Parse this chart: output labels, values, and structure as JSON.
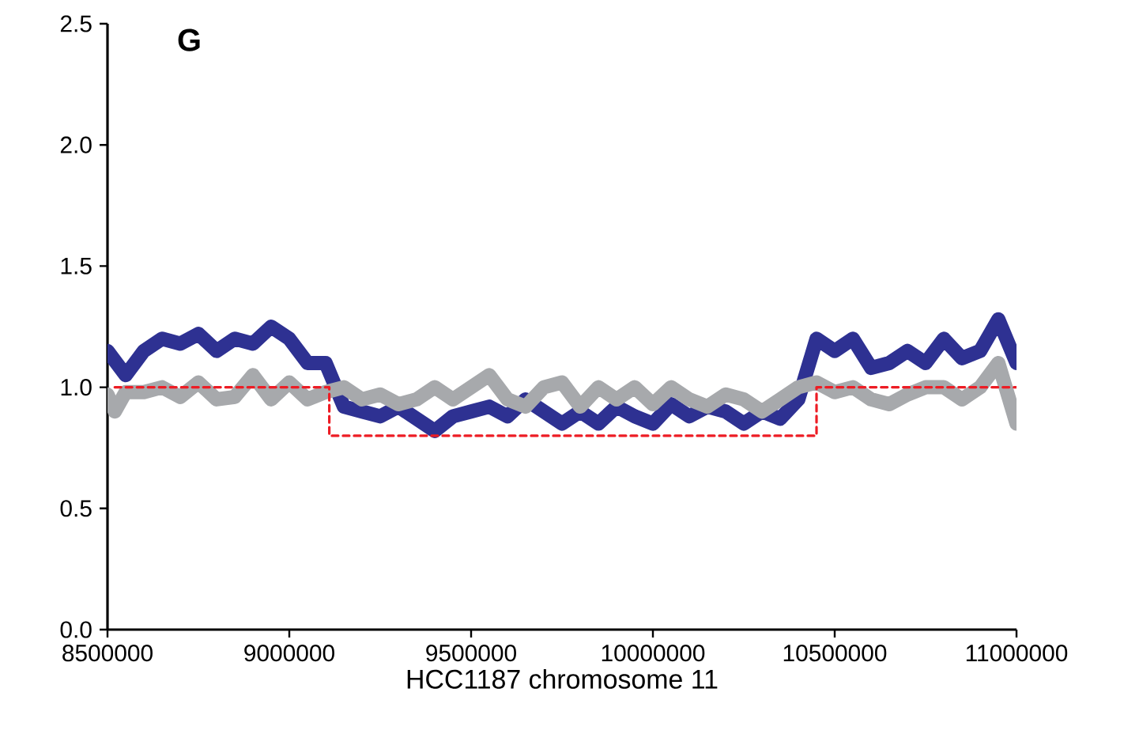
{
  "chart_data": {
    "type": "line",
    "title": "G",
    "xlabel": "HCC1187 chromosome 11",
    "xlim": [
      8500000,
      11000000
    ],
    "ylim": [
      0,
      2.5
    ],
    "xticks": [
      8500000,
      9000000,
      9500000,
      10000000,
      10500000,
      11000000
    ],
    "yticks": [
      {
        "value": 0,
        "label": "0.0"
      },
      {
        "value": 0.5,
        "label": "0.5"
      },
      {
        "value": 1,
        "label": "1.0"
      },
      {
        "value": 1.5,
        "label": "1.5"
      },
      {
        "value": 2,
        "label": "2.0"
      },
      {
        "value": 2.5,
        "label": "2.5"
      }
    ],
    "marker": "none",
    "line_style": "solid",
    "series": [
      {
        "color": "#2e3192",
        "x": [
          8500000,
          8550000,
          8600000,
          8650000,
          8700000,
          8750000,
          8800000,
          8850000,
          8900000,
          8950000,
          9000000,
          9050000,
          9100000,
          9150000,
          9200000,
          9250000,
          9300000,
          9350000,
          9400000,
          9450000,
          9500000,
          9550000,
          9600000,
          9650000,
          9700000,
          9750000,
          9800000,
          9850000,
          9900000,
          9950000,
          10000000,
          10050000,
          10100000,
          10150000,
          10200000,
          10250000,
          10300000,
          10350000,
          10400000,
          10450000,
          10500000,
          10550000,
          10600000,
          10650000,
          10700000,
          10750000,
          10800000,
          10850000,
          10900000,
          10950000,
          11000000
        ],
        "values": [
          1.15,
          1.05,
          1.15,
          1.2,
          1.18,
          1.22,
          1.15,
          1.2,
          1.18,
          1.25,
          1.2,
          1.1,
          1.1,
          0.92,
          0.9,
          0.88,
          0.92,
          0.87,
          0.82,
          0.88,
          0.9,
          0.92,
          0.88,
          0.95,
          0.9,
          0.85,
          0.9,
          0.85,
          0.92,
          0.88,
          0.85,
          0.93,
          0.88,
          0.92,
          0.9,
          0.85,
          0.9,
          0.87,
          0.95,
          1.2,
          1.15,
          1.2,
          1.08,
          1.1,
          1.15,
          1.1,
          1.2,
          1.12,
          1.15,
          1.28,
          1.1
        ]
      },
      {
        "color": "#a7a9ac",
        "x": [
          8500000,
          8520000,
          8550000,
          8600000,
          8650000,
          8700000,
          8750000,
          8800000,
          8850000,
          8900000,
          8950000,
          9000000,
          9050000,
          9100000,
          9150000,
          9200000,
          9250000,
          9300000,
          9350000,
          9400000,
          9450000,
          9500000,
          9550000,
          9600000,
          9650000,
          9700000,
          9750000,
          9800000,
          9850000,
          9900000,
          9950000,
          10000000,
          10050000,
          10100000,
          10150000,
          10200000,
          10250000,
          10300000,
          10350000,
          10400000,
          10450000,
          10500000,
          10550000,
          10600000,
          10650000,
          10700000,
          10750000,
          10800000,
          10850000,
          10900000,
          10950000,
          10980000,
          11000000
        ],
        "values": [
          0.97,
          0.9,
          0.98,
          0.98,
          1.0,
          0.96,
          1.02,
          0.95,
          0.96,
          1.05,
          0.95,
          1.02,
          0.95,
          0.98,
          1.0,
          0.95,
          0.97,
          0.93,
          0.95,
          1.0,
          0.95,
          1.0,
          1.05,
          0.95,
          0.92,
          1.0,
          1.02,
          0.92,
          1.0,
          0.95,
          1.0,
          0.93,
          1.0,
          0.95,
          0.92,
          0.97,
          0.95,
          0.9,
          0.95,
          1.0,
          1.02,
          0.98,
          1.0,
          0.95,
          0.93,
          0.97,
          1.0,
          1.0,
          0.95,
          1.0,
          1.1,
          0.95,
          0.85
        ]
      },
      {
        "color": "#ed1c24",
        "line_style": "dashed",
        "x": [
          8520000,
          9110000,
          9110000,
          10450000,
          10450000,
          11000000
        ],
        "values": [
          1.0,
          1.0,
          0.8,
          0.8,
          1.0,
          1.0
        ]
      }
    ]
  }
}
